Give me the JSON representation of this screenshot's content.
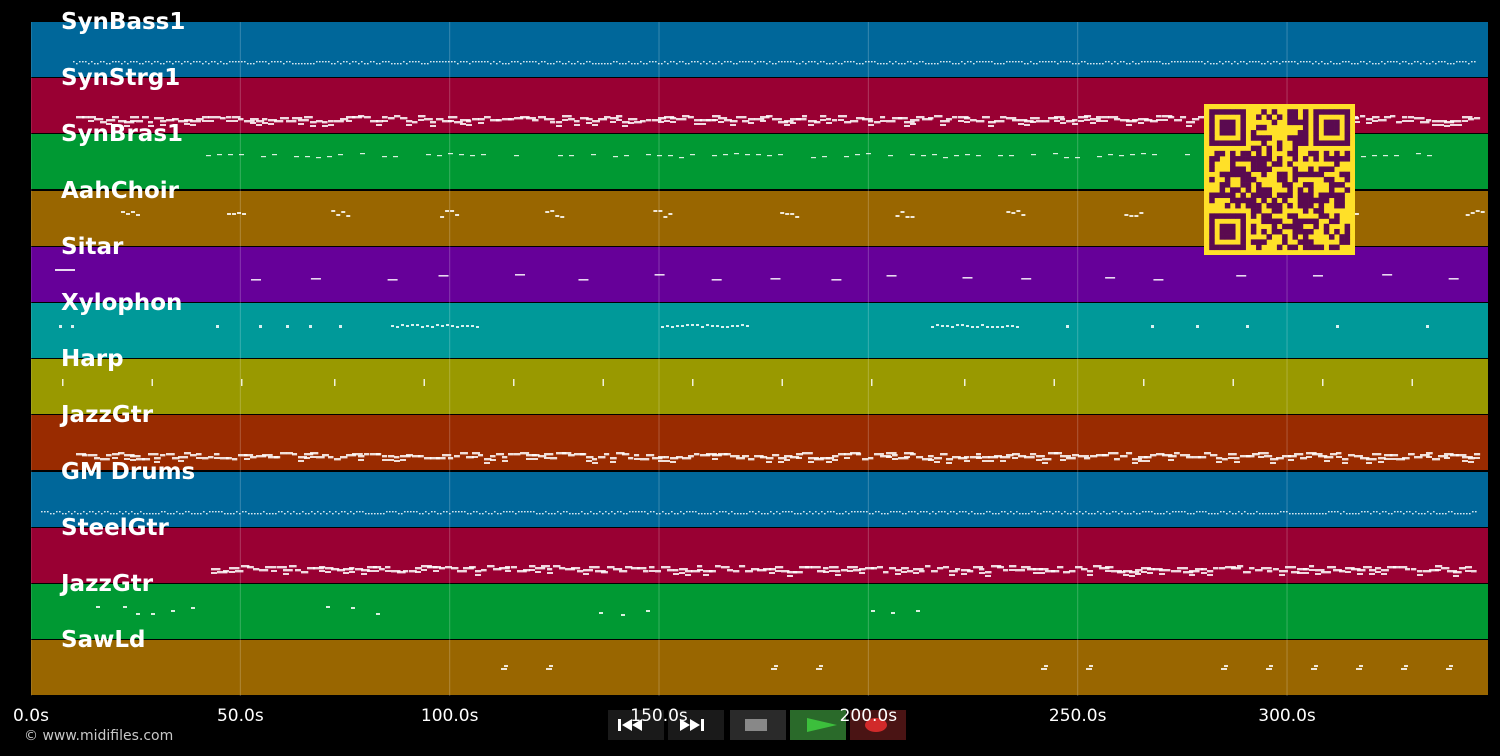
{
  "tracks": [
    {
      "name": "SynBass1",
      "color": "#00679a",
      "style": "dense"
    },
    {
      "name": "SynStrg1",
      "color": "#990033",
      "style": "thick"
    },
    {
      "name": "SynBras1",
      "color": "#009933",
      "style": "sparse_wave"
    },
    {
      "name": "AahChoir",
      "color": "#996600",
      "style": "clusters"
    },
    {
      "name": "Sitar",
      "color": "#660099",
      "style": "dashes"
    },
    {
      "name": "Xylophon",
      "color": "#009999",
      "style": "dots"
    },
    {
      "name": "Harp",
      "color": "#999900",
      "style": "slashes"
    },
    {
      "name": "JazzGtr",
      "color": "#992b00",
      "style": "thick"
    },
    {
      "name": "GM Drums",
      "color": "#00679a",
      "style": "dense"
    },
    {
      "name": "SteelGtr",
      "color": "#990033",
      "style": "thick"
    },
    {
      "name": "JazzGtr",
      "color": "#009933",
      "style": "scattered"
    },
    {
      "name": "SawLd",
      "color": "#996600",
      "style": "pairs"
    }
  ],
  "timeline": {
    "max_seconds": 348,
    "ticks": [
      {
        "value": 0,
        "label": "0.0s"
      },
      {
        "value": 50,
        "label": "50.0s"
      },
      {
        "value": 100,
        "label": "100.0s"
      },
      {
        "value": 150,
        "label": "150.0s"
      },
      {
        "value": 200,
        "label": "200.0s"
      },
      {
        "value": 250,
        "label": "250.0s"
      },
      {
        "value": 300,
        "label": "300.0s"
      }
    ]
  },
  "copyright": "© www.midifiles.com",
  "transport": {
    "rewind_icon": "rewind-icon",
    "forward_icon": "fast-forward-icon",
    "stop_icon": "stop-icon",
    "play_icon": "play-icon",
    "record_icon": "record-icon",
    "colors": {
      "play": "#2a6a2a",
      "record": "#4a1414",
      "stop_glyph": "#888888",
      "play_glyph": "#3cbf3c",
      "record_glyph": "#d12a2a"
    }
  },
  "qr_code": {
    "colors": {
      "fg": "#5a0a50",
      "bg": "#ffe028"
    }
  }
}
